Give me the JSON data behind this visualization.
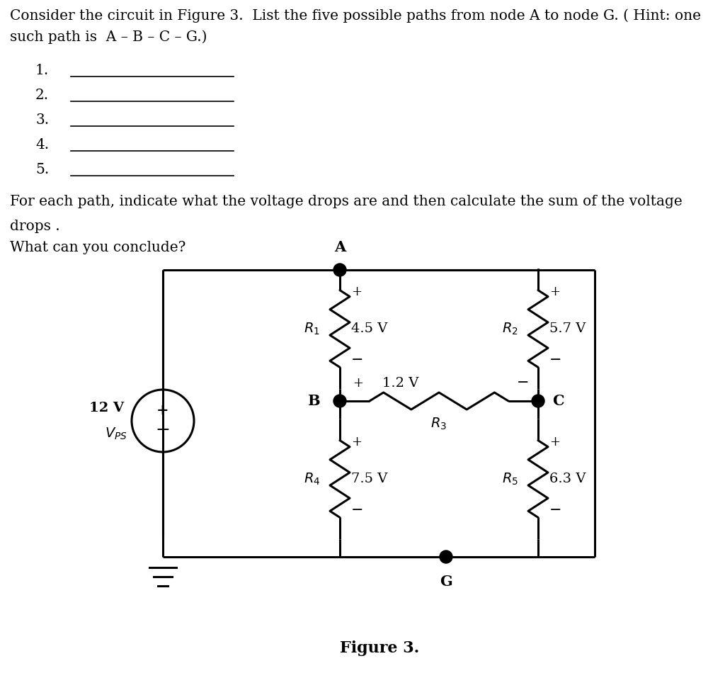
{
  "title_line1": "Consider the circuit in Figure 3.  List the five possible paths from node A to node G. ( Hint: one",
  "title_line2": "such path is  A – B – C – G.)",
  "list_items": [
    "1.",
    "2.",
    "3.",
    "4.",
    "5."
  ],
  "para_line1": "For each path, indicate what the voltage drops are and then calculate the sum of the voltage",
  "para_line2": "drops .",
  "para_line3": "What can you conclude?",
  "figure_label": "Figure 3.",
  "bg_color": "#ffffff",
  "text_color": "#000000",
  "R1_voltage": "4.5 V",
  "R2_voltage": "5.7 V",
  "R3_voltage": "1.2 V",
  "R4_voltage": "7.5 V",
  "R5_voltage": "6.3 V",
  "Vps_voltage": "12 V"
}
